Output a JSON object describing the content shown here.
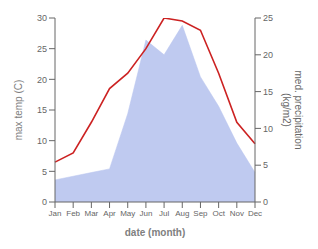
{
  "chart_data": {
    "type": "line",
    "xlabel": "date (month)",
    "ylabel": "max temp (C)",
    "y2label": "med. precipitation\n(kg/m2)",
    "categories": [
      "Jan",
      "Feb",
      "Mar",
      "Apr",
      "May",
      "Jun",
      "Jul",
      "Aug",
      "Sep",
      "Oct",
      "Nov",
      "Dec"
    ],
    "series": [
      {
        "type": "area",
        "axis": "y2",
        "color": "#b8c4ee",
        "values": [
          3.0,
          3.5,
          4.0,
          4.5,
          12.0,
          22.0,
          20.0,
          24.0,
          17.0,
          13.0,
          8.0,
          4.0
        ]
      },
      {
        "type": "line",
        "color": "#cc2222",
        "values": [
          6.5,
          8.0,
          13.0,
          18.5,
          21.0,
          25.0,
          30.0,
          29.5,
          28.0,
          21.0,
          13.0,
          9.5
        ]
      }
    ],
    "ylim": [
      0,
      30
    ],
    "yticks": [
      0,
      5,
      10,
      15,
      20,
      25,
      30
    ],
    "y2lim": [
      0,
      25
    ],
    "y2ticks": [
      0,
      5,
      10,
      15,
      20,
      25
    ]
  }
}
